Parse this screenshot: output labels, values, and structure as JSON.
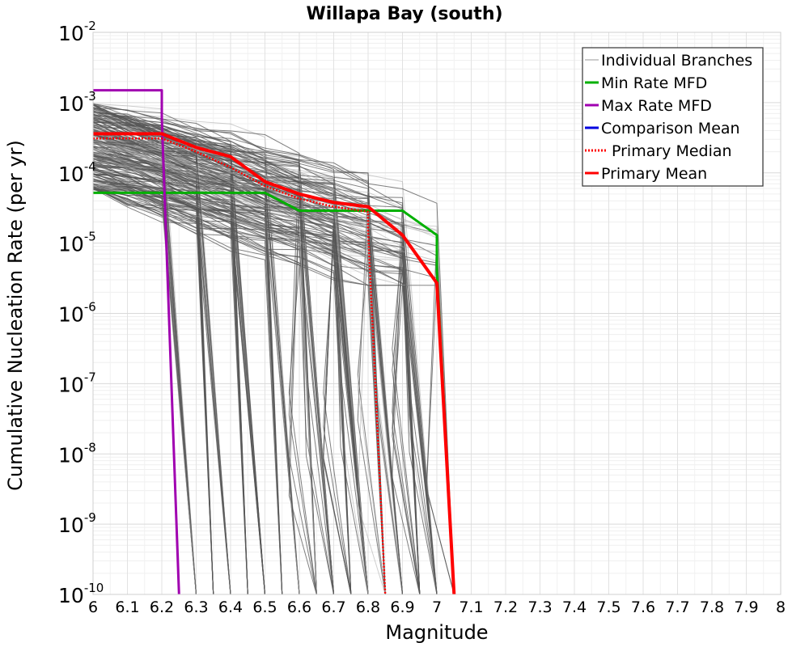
{
  "chart_data": {
    "type": "line",
    "title": "Willapa Bay (south)",
    "xlabel": "Magnitude",
    "ylabel": "Cumulative Nucleation Rate (per yr)",
    "xlim": [
      6,
      8
    ],
    "ylim": [
      1e-10,
      0.01
    ],
    "y_scale": "log",
    "grid": true,
    "legend_position": "top-right",
    "x_ticks": [
      "6",
      "6.1",
      "6.2",
      "6.3",
      "6.4",
      "6.5",
      "6.6",
      "6.7",
      "6.8",
      "6.9",
      "7",
      "7.1",
      "7.2",
      "7.3",
      "7.4",
      "7.5",
      "7.6",
      "7.7",
      "7.8",
      "7.9",
      "8"
    ],
    "y_ticks": [
      {
        "base": "10",
        "exp": "-10"
      },
      {
        "base": "10",
        "exp": "-9"
      },
      {
        "base": "10",
        "exp": "-8"
      },
      {
        "base": "10",
        "exp": "-7"
      },
      {
        "base": "10",
        "exp": "-6"
      },
      {
        "base": "10",
        "exp": "-5"
      },
      {
        "base": "10",
        "exp": "-4"
      },
      {
        "base": "10",
        "exp": "-3"
      },
      {
        "base": "10",
        "exp": "-2"
      }
    ],
    "series": [
      {
        "name": "Individual Branches",
        "color": "#9a9a9a",
        "style": "solid",
        "x": [],
        "y": []
      },
      {
        "name": "Min Rate MFD",
        "color": "#00b000",
        "style": "solid",
        "x": [
          6.0,
          6.5,
          6.6,
          6.9,
          7.0,
          7.0,
          7.05
        ],
        "y": [
          5.2e-05,
          5.2e-05,
          2.9e-05,
          2.9e-05,
          1.3e-05,
          4e-06,
          1e-10
        ]
      },
      {
        "name": "Max Rate MFD",
        "color": "#a000b0",
        "style": "solid",
        "x": [
          6.0,
          6.2,
          6.2,
          6.25
        ],
        "y": [
          0.0015,
          0.0015,
          0.0006,
          1e-10
        ]
      },
      {
        "name": "Comparison Mean",
        "color": "#0000e0",
        "style": "solid",
        "x": [],
        "y": []
      },
      {
        "name": "Primary Median",
        "color": "#ff0000",
        "style": "dotted",
        "x": [
          6.0,
          6.2,
          6.3,
          6.4,
          6.5,
          6.6,
          6.7,
          6.8,
          6.8,
          6.85
        ],
        "y": [
          0.00031,
          0.00031,
          0.0002,
          0.00012,
          6.5e-05,
          4.3e-05,
          3.3e-05,
          2.8e-05,
          1.5e-05,
          1e-10
        ]
      },
      {
        "name": "Primary Mean",
        "color": "#ff0000",
        "style": "solid",
        "x": [
          6.0,
          6.2,
          6.3,
          6.4,
          6.5,
          6.6,
          6.7,
          6.8,
          6.9,
          7.0,
          7.05
        ],
        "y": [
          0.00036,
          0.00036,
          0.00023,
          0.00017,
          7.5e-05,
          5e-05,
          3.8e-05,
          3.3e-05,
          1.3e-05,
          2.7e-06,
          1e-10
        ]
      }
    ]
  }
}
